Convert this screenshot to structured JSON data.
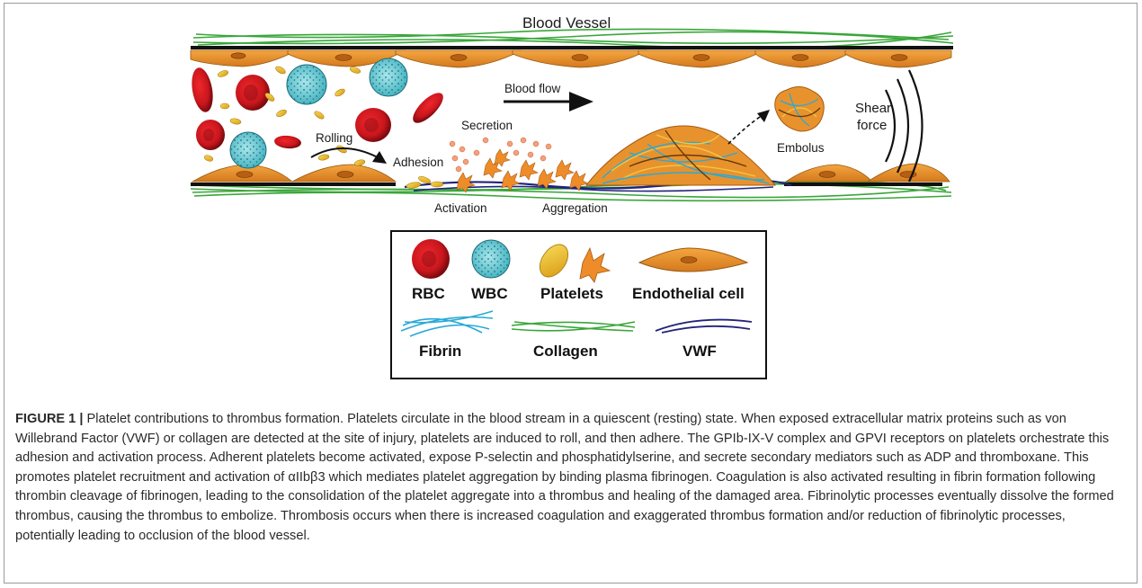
{
  "figure": {
    "labels": {
      "vessel": "Blood Vessel",
      "blood_flow": "Blood flow",
      "secretion": "Secretion",
      "rolling": "Rolling",
      "adhesion": "Adhesion",
      "activation": "Activation",
      "aggregation": "Aggregation",
      "embolus": "Embolus",
      "shear_line1": "Shear",
      "shear_line2": "force"
    },
    "legend": {
      "rbc": "RBC",
      "wbc": "WBC",
      "platelets": "Platelets",
      "endothelial": "Endothelial cell",
      "fibrin": "Fibrin",
      "collagen": "Collagen",
      "vwf": "VWF"
    }
  },
  "caption": {
    "label": "FIGURE 1 |",
    "text": "Platelet contributions to thrombus formation. Platelets circulate in the blood stream in a quiescent (resting) state. When exposed extracellular matrix proteins such as von Willebrand Factor (VWF) or collagen are detected at the site of injury, platelets are induced to roll, and then adhere. The GPIb-IX-V complex and GPVI receptors on platelets orchestrate this adhesion and activation process. Adherent platelets become activated, expose P-selectin and phosphatidylserine, and secrete secondary mediators such as ADP and thromboxane. This promotes platelet recruitment and activation of αIIbβ3 which mediates platelet aggregation by binding plasma fibrinogen. Coagulation is also activated resulting in fibrin formation following thrombin cleavage of fibrinogen, leading to the consolidation of the platelet aggregate into a thrombus and healing of the damaged area. Fibrinolytic processes eventually dissolve the formed thrombus, causing the thrombus to embolize. Thrombosis occurs when there is increased coagulation and exaggerated thrombus formation and/or reduction of fibrinolytic processes, potentially leading to occlusion of the blood vessel."
  },
  "colors": {
    "rbc": "#c8161d",
    "wbc": "#5bc8d2",
    "platelet": "#e8b428",
    "endothelial": "#e8922e",
    "fibrin": "#2aa9d6",
    "collagen": "#3aa63a",
    "vwf": "#22237a"
  }
}
